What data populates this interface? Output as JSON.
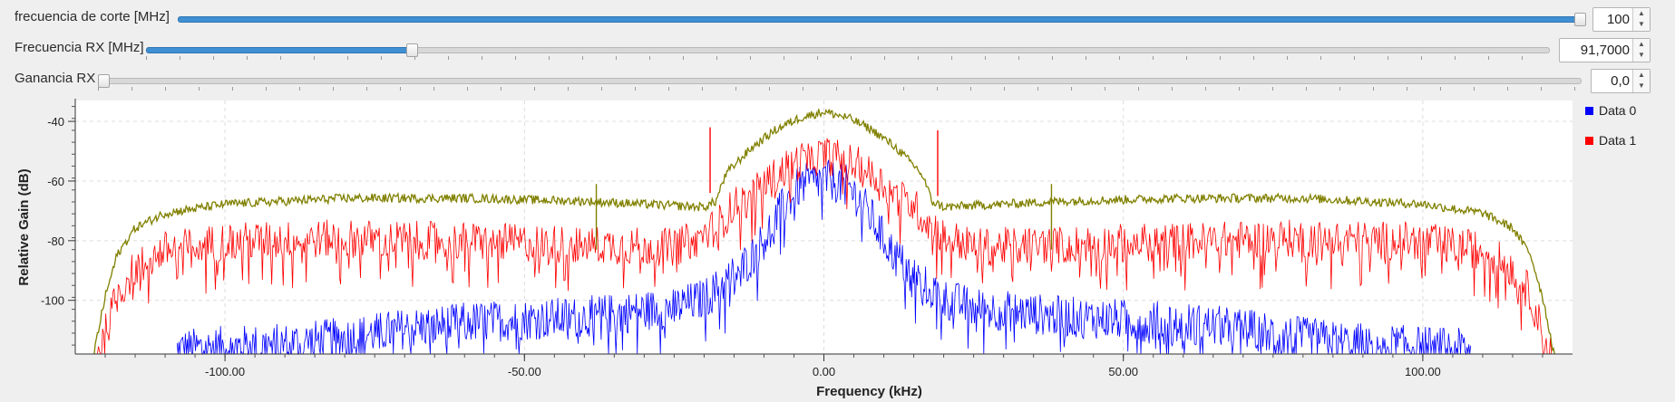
{
  "controls": [
    {
      "label": "frecuencia de corte [MHz]",
      "value": "100",
      "fraction": 1.0
    },
    {
      "label": "Frecuencia RX [MHz]",
      "value": "91,7000",
      "fraction": 0.187
    },
    {
      "label": "Ganancia RX",
      "value": "0,0",
      "fraction": 0.0
    }
  ],
  "colors": {
    "data0": "#0000ff",
    "data1": "#ff0000",
    "data2": "#808000",
    "accent": "#3f8fd2"
  },
  "chart_data": {
    "type": "line",
    "title": "",
    "xlabel": "Frequency (kHz)",
    "ylabel": "Relative Gain (dB)",
    "xlim": [
      -125,
      125
    ],
    "ylim": [
      -118,
      -33
    ],
    "x_ticks": [
      -100,
      -50,
      0,
      50,
      100
    ],
    "x_tick_labels": [
      "-100.00",
      "-50.00",
      "0.00",
      "50.00",
      "100.00"
    ],
    "y_ticks": [
      -40,
      -60,
      -80,
      -100
    ],
    "y_tick_labels": [
      "-40",
      "-60",
      "-80",
      "-100"
    ],
    "grid": true,
    "legend_position": "right",
    "series": [
      {
        "name": "Data 0",
        "color": "#0000ff",
        "x": [
          -108,
          -100,
          -90,
          -80,
          -70,
          -60,
          -50,
          -40,
          -30,
          -25,
          -20,
          -18,
          -15,
          -12,
          -10,
          -8,
          -6,
          -4,
          -2,
          0,
          2,
          4,
          6,
          8,
          10,
          12,
          15,
          18,
          20,
          25,
          30,
          40,
          50,
          60,
          70,
          80,
          90,
          100,
          108
        ],
        "y": [
          -113,
          -112,
          -111,
          -109,
          -106,
          -104,
          -103,
          -102,
          -100,
          -99,
          -96,
          -93,
          -88,
          -82,
          -76,
          -69,
          -63,
          -58,
          -57,
          -56,
          -57,
          -58,
          -63,
          -69,
          -76,
          -82,
          -88,
          -93,
          -96,
          -99,
          -100,
          -102,
          -103,
          -104,
          -106,
          -109,
          -111,
          -112,
          -113
        ]
      },
      {
        "name": "Data 1",
        "color": "#ff0000",
        "x": [
          -122,
          -120,
          -118,
          -115,
          -110,
          -100,
          -80,
          -60,
          -40,
          -25,
          -20,
          -17,
          -15,
          -12,
          -10,
          -8,
          -6,
          -4,
          -2,
          0,
          2,
          4,
          6,
          8,
          10,
          12,
          15,
          17,
          20,
          25,
          40,
          60,
          80,
          100,
          110,
          115,
          118,
          120,
          122
        ],
        "y": [
          -118,
          -108,
          -95,
          -86,
          -80,
          -77,
          -76,
          -77,
          -78,
          -79,
          -75,
          -70,
          -65,
          -62,
          -58,
          -55,
          -52,
          -50,
          -49,
          -48,
          -49,
          -50,
          -52,
          -55,
          -58,
          -62,
          -65,
          -70,
          -75,
          -79,
          -78,
          -77,
          -76,
          -77,
          -80,
          -86,
          -95,
          -108,
          -118
        ]
      },
      {
        "name": "",
        "color": "#808000",
        "x": [
          -122,
          -120,
          -118,
          -115,
          -110,
          -100,
          -80,
          -60,
          -40,
          -30,
          -20,
          -18,
          -17,
          -16,
          -14,
          -12,
          -10,
          -8,
          -6,
          -4,
          -2,
          0,
          2,
          4,
          6,
          8,
          10,
          12,
          14,
          16,
          17,
          18,
          20,
          30,
          40,
          60,
          80,
          100,
          110,
          115,
          118,
          120,
          122
        ],
        "y": [
          -118,
          -98,
          -84,
          -75,
          -70,
          -67,
          -65,
          -65,
          -66,
          -67,
          -68,
          -66,
          -60,
          -56,
          -52,
          -48,
          -45,
          -42,
          -40,
          -38,
          -37,
          -36,
          -37,
          -38,
          -40,
          -42,
          -45,
          -48,
          -52,
          -56,
          -60,
          -66,
          -68,
          -67,
          -66,
          -65,
          -65,
          -67,
          -70,
          -75,
          -84,
          -98,
          -118
        ]
      }
    ],
    "spikes": [
      {
        "x": -19,
        "y": -42,
        "color": "#ff0000"
      },
      {
        "x": 19,
        "y": -43,
        "color": "#ff0000"
      },
      {
        "x": -38,
        "y": -61,
        "color": "#808000"
      },
      {
        "x": 38,
        "y": -61,
        "color": "#808000"
      }
    ]
  }
}
